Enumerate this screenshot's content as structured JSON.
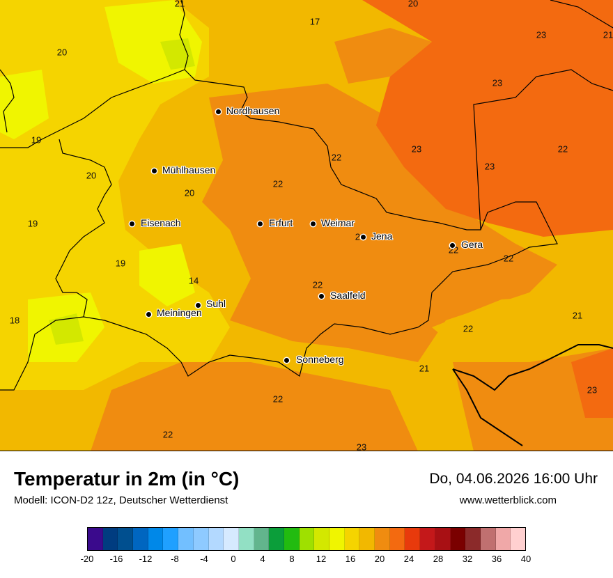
{
  "map": {
    "cities": [
      {
        "id": "nordhausen",
        "name": "Nordhausen"
      },
      {
        "id": "muehlhausen",
        "name": "Mühlhausen"
      },
      {
        "id": "eisenach",
        "name": "Eisenach"
      },
      {
        "id": "erfurt",
        "name": "Erfurt"
      },
      {
        "id": "weimar",
        "name": "Weimar"
      },
      {
        "id": "jena",
        "name": "Jena"
      },
      {
        "id": "gera",
        "name": "Gera"
      },
      {
        "id": "saalfeld",
        "name": "Saalfeld"
      },
      {
        "id": "suhl",
        "name": "Suhl"
      },
      {
        "id": "meiningen",
        "name": "Meiningen"
      },
      {
        "id": "sonneberg",
        "name": "Sonneberg"
      }
    ],
    "values": [
      "21",
      "20",
      "17",
      "23",
      "21",
      "20",
      "23",
      "19",
      "22",
      "23",
      "20",
      "22",
      "20",
      "19",
      "23",
      "19",
      "22",
      "22",
      "14",
      "18",
      "21",
      "22",
      "21",
      "23",
      "22",
      "22",
      "23",
      "22",
      "23"
    ]
  },
  "footer": {
    "title": "Temperatur in 2m (in °C)",
    "model": "Modell: ICON-D2 12z, Deutscher Wetterdienst",
    "datetime": "Do, 04.06.2026 16:00 Uhr",
    "website": "www.wetterblick.com"
  },
  "legend": {
    "colors": [
      "#3a0a8c",
      "#003c80",
      "#004f8f",
      "#0066c0",
      "#0088e8",
      "#1fa0ff",
      "#72bfff",
      "#8ecaff",
      "#b3d9ff",
      "#d6eaff",
      "#92e0c4",
      "#62b58d",
      "#0b9e3a",
      "#22bb10",
      "#9fe000",
      "#d3e800",
      "#f0f500",
      "#f5d400",
      "#f2b800",
      "#f08c10",
      "#f36a10",
      "#e83a0c",
      "#c4181a",
      "#a81014",
      "#7a0000",
      "#8b2a2a",
      "#c07070",
      "#f0a8a8",
      "#ffd0d0"
    ],
    "ticks": [
      "-20",
      "-16",
      "-12",
      "-8",
      "-4",
      "0",
      "4",
      "8",
      "12",
      "16",
      "20",
      "24",
      "28",
      "32",
      "36",
      "40"
    ]
  }
}
